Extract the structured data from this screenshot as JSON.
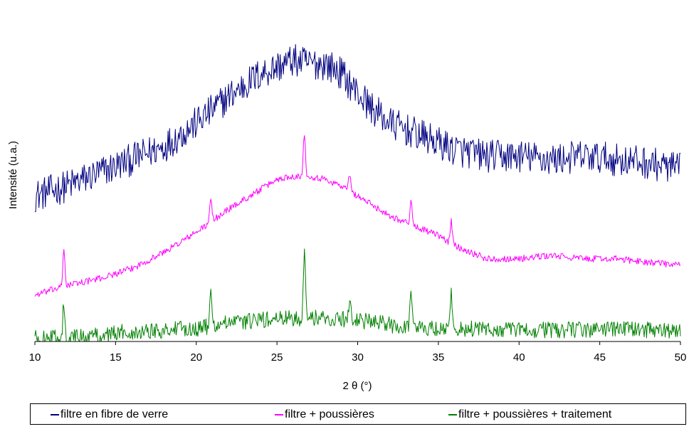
{
  "chart_data": {
    "type": "line",
    "title": "",
    "xlabel": "2 θ (°)",
    "ylabel": "Intensité (u.a.)",
    "xlim": [
      10,
      50
    ],
    "ylim": [
      0,
      100
    ],
    "xticks": [
      10,
      15,
      20,
      25,
      30,
      35,
      40,
      45,
      50
    ],
    "grid": false,
    "legend_position": "bottom",
    "series": [
      {
        "name": "filtre en fibre de verre",
        "color": "#000080",
        "noise": 5,
        "x": [
          10,
          12,
          14,
          16,
          18,
          20,
          22,
          24,
          25,
          26,
          27,
          28,
          29,
          30,
          31,
          32,
          34,
          36,
          38,
          40,
          42,
          44,
          46,
          48,
          50
        ],
        "y": [
          44,
          47,
          51,
          55,
          59,
          66,
          74,
          81,
          83,
          85,
          84,
          84,
          81,
          75,
          70,
          66,
          62,
          58,
          56,
          56,
          55,
          56,
          55,
          54,
          52
        ],
        "peaks": []
      },
      {
        "name": "filtre + poussières",
        "color": "#ff00ff",
        "noise": 1,
        "x": [
          10,
          12,
          14,
          16,
          18,
          20,
          22,
          24,
          25,
          26,
          27,
          28,
          29,
          30,
          31,
          32,
          33,
          34,
          35,
          36,
          37,
          38,
          40,
          42,
          44,
          46,
          48,
          50
        ],
        "y": [
          14,
          17,
          19,
          22,
          27,
          33,
          40,
          46,
          49,
          50,
          50,
          49,
          47,
          44,
          41,
          38,
          36,
          34,
          32,
          29,
          27,
          25,
          25,
          26,
          25,
          25,
          24,
          23
        ],
        "peaks": [
          [
            11.8,
            11
          ],
          [
            20.9,
            7
          ],
          [
            26.7,
            13
          ],
          [
            29.5,
            5
          ],
          [
            33.3,
            7
          ],
          [
            35.8,
            7
          ]
        ]
      },
      {
        "name": "filtre + poussières + traitement",
        "color": "#008000",
        "noise": 2.5,
        "x": [
          10,
          12,
          14,
          16,
          18,
          20,
          22,
          24,
          26,
          28,
          30,
          32,
          34,
          36,
          38,
          40,
          42,
          44,
          46,
          48,
          50
        ],
        "y": [
          1,
          1,
          2,
          3,
          3.5,
          4,
          5.5,
          6.5,
          7,
          7,
          6.5,
          5,
          4,
          4,
          3.5,
          3.5,
          3.5,
          3.5,
          4,
          3.5,
          3
        ],
        "peaks": [
          [
            11.8,
            11
          ],
          [
            20.9,
            9
          ],
          [
            26.7,
            22
          ],
          [
            29.5,
            6
          ],
          [
            33.3,
            12
          ],
          [
            35.8,
            10
          ]
        ]
      }
    ]
  }
}
